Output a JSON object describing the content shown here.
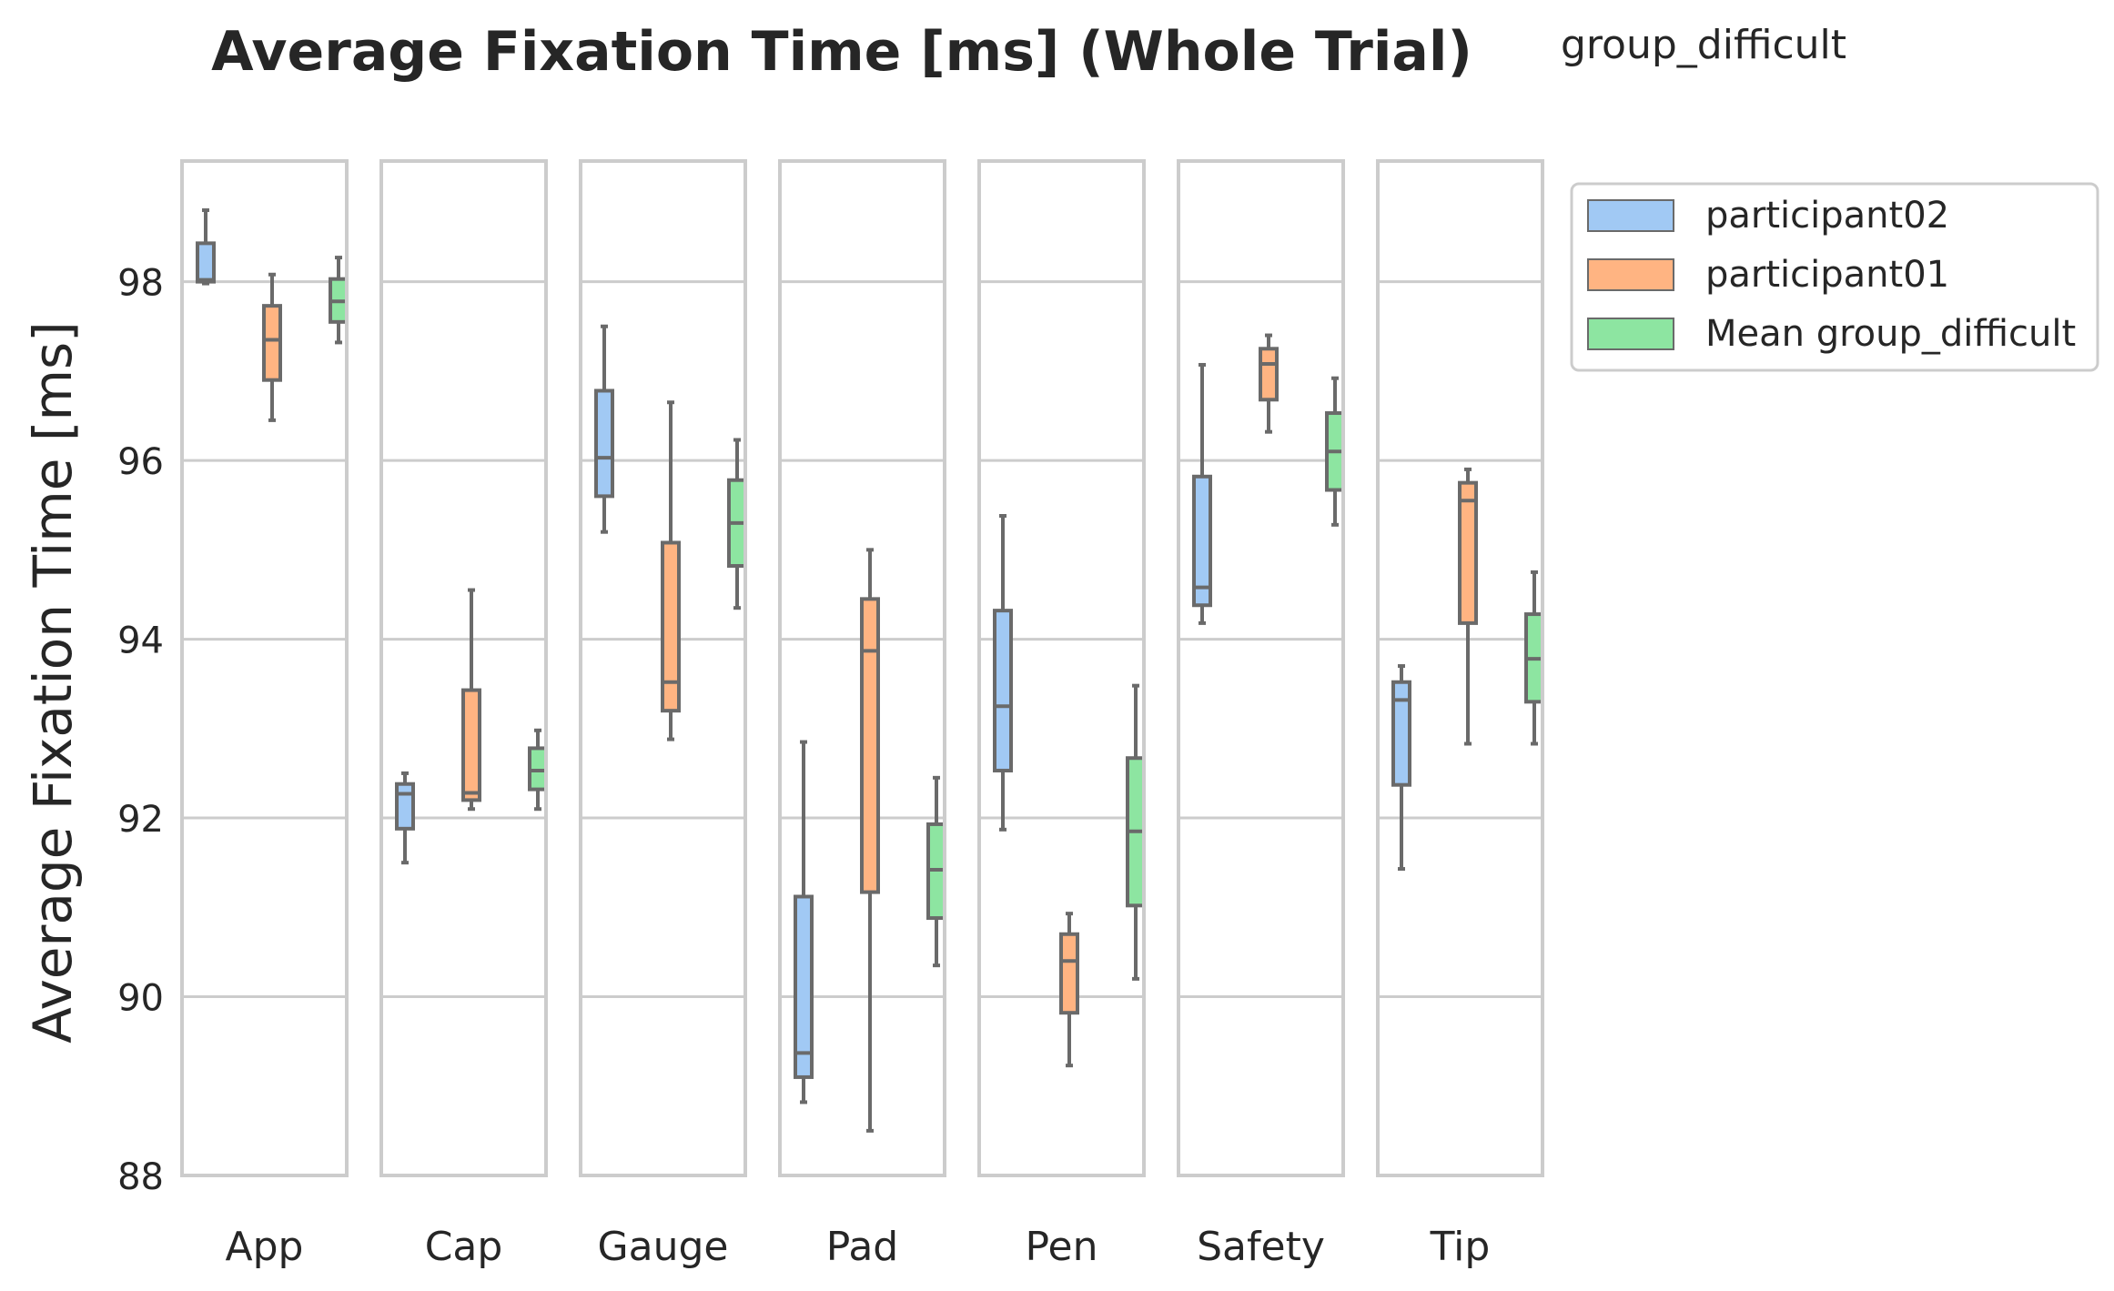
{
  "chart_data": {
    "type": "box",
    "title": "Average Fixation Time [ms] (Whole Trial)",
    "subtitle": "group_difficult",
    "ylabel": "Average Fixation Time [ms]",
    "xlabel": "",
    "ylim": [
      88,
      99.35
    ],
    "yticks": [
      88,
      90,
      92,
      94,
      96,
      98
    ],
    "grid": true,
    "legend_position": "outside-top-right",
    "categories": [
      "App",
      "Cap",
      "Gauge",
      "Pad",
      "Pen",
      "Safety",
      "Tip"
    ],
    "series": [
      {
        "name": "participant02",
        "color": "#a1c9f4",
        "boxes": [
          {
            "min": 97.98,
            "q1": 98.0,
            "median": 98.02,
            "q3": 98.43,
            "max": 98.8
          },
          {
            "min": 91.5,
            "q1": 91.88,
            "median": 92.27,
            "q3": 92.38,
            "max": 92.5
          },
          {
            "min": 95.2,
            "q1": 95.6,
            "median": 96.03,
            "q3": 96.78,
            "max": 97.5
          },
          {
            "min": 88.82,
            "q1": 89.1,
            "median": 89.37,
            "q3": 91.12,
            "max": 92.85
          },
          {
            "min": 91.87,
            "q1": 92.53,
            "median": 93.25,
            "q3": 94.32,
            "max": 95.38
          },
          {
            "min": 94.18,
            "q1": 94.38,
            "median": 94.58,
            "q3": 95.82,
            "max": 97.07
          },
          {
            "min": 91.43,
            "q1": 92.37,
            "median": 93.32,
            "q3": 93.52,
            "max": 93.7
          }
        ]
      },
      {
        "name": "participant01",
        "color": "#ffb482",
        "boxes": [
          {
            "min": 96.45,
            "q1": 96.9,
            "median": 97.35,
            "q3": 97.73,
            "max": 98.08
          },
          {
            "min": 92.1,
            "q1": 92.2,
            "median": 92.28,
            "q3": 93.43,
            "max": 94.55
          },
          {
            "min": 92.88,
            "q1": 93.2,
            "median": 93.52,
            "q3": 95.08,
            "max": 96.65
          },
          {
            "min": 88.5,
            "q1": 91.17,
            "median": 93.87,
            "q3": 94.45,
            "max": 95.0
          },
          {
            "min": 89.23,
            "q1": 89.82,
            "median": 90.4,
            "q3": 90.7,
            "max": 90.93
          },
          {
            "min": 96.32,
            "q1": 96.68,
            "median": 97.08,
            "q3": 97.25,
            "max": 97.4
          },
          {
            "min": 92.83,
            "q1": 94.18,
            "median": 95.55,
            "q3": 95.75,
            "max": 95.9
          }
        ]
      },
      {
        "name": "Mean group_difficult",
        "color": "#8de5a1",
        "boxes": [
          {
            "min": 97.32,
            "q1": 97.55,
            "median": 97.78,
            "q3": 98.03,
            "max": 98.27
          },
          {
            "min": 92.1,
            "q1": 92.32,
            "median": 92.53,
            "q3": 92.78,
            "max": 92.98
          },
          {
            "min": 94.35,
            "q1": 94.82,
            "median": 95.3,
            "q3": 95.78,
            "max": 96.23
          },
          {
            "min": 90.35,
            "q1": 90.88,
            "median": 91.42,
            "q3": 91.93,
            "max": 92.45
          },
          {
            "min": 90.2,
            "q1": 91.02,
            "median": 91.85,
            "q3": 92.67,
            "max": 93.48
          },
          {
            "min": 95.28,
            "q1": 95.67,
            "median": 96.1,
            "q3": 96.53,
            "max": 96.92
          },
          {
            "min": 92.83,
            "q1": 93.3,
            "median": 93.78,
            "q3": 94.28,
            "max": 94.75
          }
        ]
      }
    ]
  }
}
